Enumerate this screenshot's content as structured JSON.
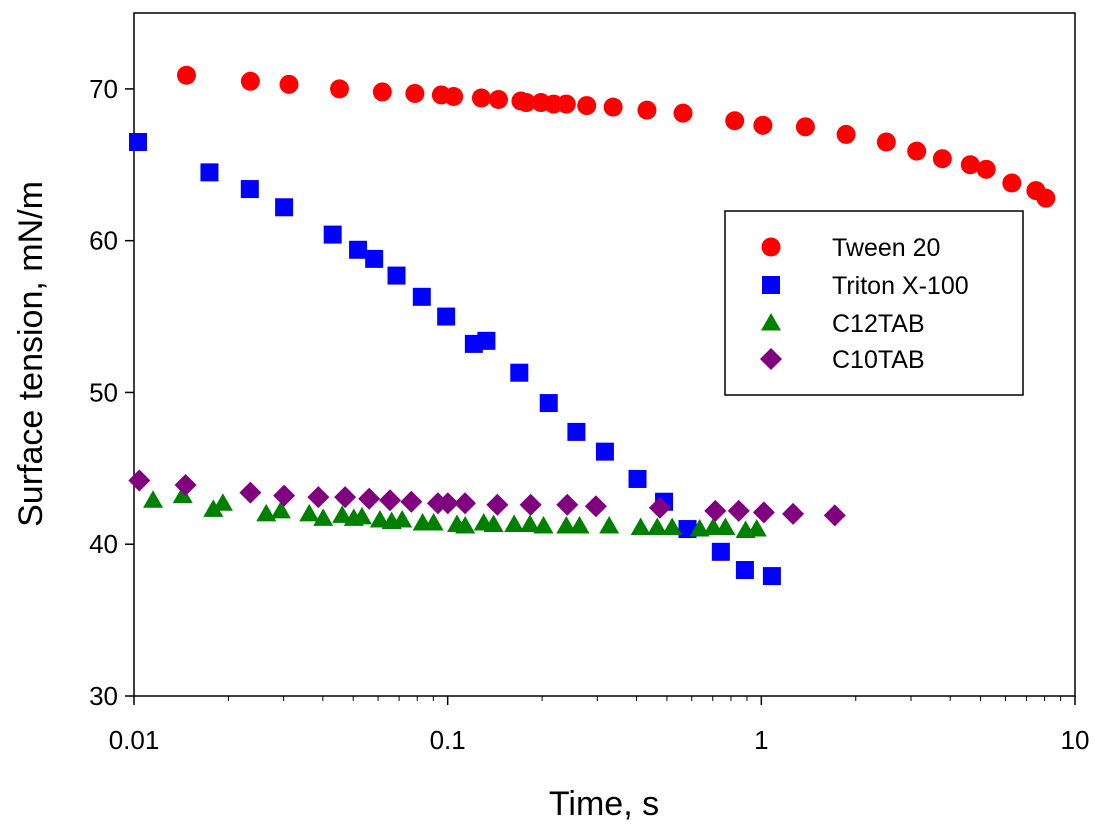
{
  "chart_data": {
    "type": "scatter",
    "title": "",
    "xlabel": "Time, s",
    "ylabel": "Surface tension, mN/m",
    "xscale": "log",
    "xlim": [
      0.01,
      10
    ],
    "ylim": [
      30,
      75
    ],
    "grid": false,
    "legend_position": "right",
    "x_ticks": [
      {
        "value": 0.01,
        "label": "0.01"
      },
      {
        "value": 0.1,
        "label": "0.1"
      },
      {
        "value": 1,
        "label": "1"
      },
      {
        "value": 10,
        "label": "10"
      }
    ],
    "y_ticks": [
      {
        "value": 30,
        "label": "30"
      },
      {
        "value": 40,
        "label": "40"
      },
      {
        "value": 50,
        "label": "50"
      },
      {
        "value": 60,
        "label": "60"
      },
      {
        "value": 70,
        "label": "70"
      }
    ],
    "series": [
      {
        "name": "Tween 20",
        "marker": "circle",
        "color": "#ff0000",
        "points": [
          [
            0.0147,
            70.9
          ],
          [
            0.0235,
            70.5
          ],
          [
            0.0312,
            70.3
          ],
          [
            0.0452,
            70.0
          ],
          [
            0.0619,
            69.8
          ],
          [
            0.0786,
            69.7
          ],
          [
            0.0955,
            69.6
          ],
          [
            0.1045,
            69.5
          ],
          [
            0.1281,
            69.4
          ],
          [
            0.1452,
            69.3
          ],
          [
            0.1712,
            69.2
          ],
          [
            0.1782,
            69.1
          ],
          [
            0.1984,
            69.1
          ],
          [
            0.2177,
            69.0
          ],
          [
            0.2389,
            69.0
          ],
          [
            0.2775,
            68.9
          ],
          [
            0.3369,
            68.8
          ],
          [
            0.4319,
            68.6
          ],
          [
            0.5627,
            68.4
          ],
          [
            0.8225,
            67.9
          ],
          [
            1.0114,
            67.6
          ],
          [
            1.3821,
            67.5
          ],
          [
            1.8631,
            67.0
          ],
          [
            2.5034,
            66.5
          ],
          [
            3.1284,
            65.9
          ],
          [
            3.7761,
            65.4
          ],
          [
            4.6369,
            65.0
          ],
          [
            5.2111,
            64.7
          ],
          [
            6.2899,
            63.8
          ],
          [
            7.5067,
            63.3
          ],
          [
            8.0741,
            62.8
          ]
        ]
      },
      {
        "name": "Triton X-100",
        "marker": "square",
        "color": "#0000ff",
        "points": [
          [
            0.0103,
            66.5
          ],
          [
            0.0174,
            64.5
          ],
          [
            0.0234,
            63.4
          ],
          [
            0.0301,
            62.2
          ],
          [
            0.043,
            60.4
          ],
          [
            0.0518,
            59.4
          ],
          [
            0.0583,
            58.8
          ],
          [
            0.0687,
            57.7
          ],
          [
            0.0827,
            56.3
          ],
          [
            0.0989,
            55.0
          ],
          [
            0.1212,
            53.2
          ],
          [
            0.1329,
            53.4
          ],
          [
            0.1692,
            51.3
          ],
          [
            0.21,
            49.3
          ],
          [
            0.2573,
            47.4
          ],
          [
            0.3172,
            46.1
          ],
          [
            0.403,
            44.3
          ],
          [
            0.4896,
            42.8
          ],
          [
            0.5816,
            41.0
          ],
          [
            0.7429,
            39.5
          ],
          [
            0.8865,
            38.3
          ],
          [
            1.0806,
            37.9
          ]
        ]
      },
      {
        "name": "C12TAB",
        "marker": "triangle",
        "color": "#008000",
        "points": [
          [
            0.0115,
            42.9
          ],
          [
            0.0143,
            43.2
          ],
          [
            0.0179,
            42.3
          ],
          [
            0.0192,
            42.7
          ],
          [
            0.0264,
            42.0
          ],
          [
            0.0294,
            42.2
          ],
          [
            0.0362,
            42.0
          ],
          [
            0.0401,
            41.7
          ],
          [
            0.0461,
            41.9
          ],
          [
            0.0502,
            41.7
          ],
          [
            0.0533,
            41.8
          ],
          [
            0.0608,
            41.6
          ],
          [
            0.0663,
            41.5
          ],
          [
            0.0716,
            41.6
          ],
          [
            0.0832,
            41.4
          ],
          [
            0.0902,
            41.4
          ],
          [
            0.1071,
            41.3
          ],
          [
            0.1137,
            41.2
          ],
          [
            0.1303,
            41.4
          ],
          [
            0.1401,
            41.3
          ],
          [
            0.1629,
            41.3
          ],
          [
            0.1829,
            41.3
          ],
          [
            0.2021,
            41.2
          ],
          [
            0.2389,
            41.2
          ],
          [
            0.2632,
            41.2
          ],
          [
            0.3272,
            41.2
          ],
          [
            0.4124,
            41.1
          ],
          [
            0.4658,
            41.1
          ],
          [
            0.5195,
            41.1
          ],
          [
            0.636,
            41.0
          ],
          [
            0.7028,
            41.1
          ],
          [
            0.7681,
            41.1
          ],
          [
            0.8908,
            40.9
          ],
          [
            0.9669,
            41.0
          ]
        ]
      },
      {
        "name": "C10TAB",
        "marker": "diamond",
        "color": "#800080",
        "points": [
          [
            0.0104,
            44.2
          ],
          [
            0.0146,
            43.9
          ],
          [
            0.0235,
            43.4
          ],
          [
            0.0301,
            43.2
          ],
          [
            0.0387,
            43.1
          ],
          [
            0.0471,
            43.1
          ],
          [
            0.0562,
            43.0
          ],
          [
            0.0655,
            42.9
          ],
          [
            0.0766,
            42.8
          ],
          [
            0.0931,
            42.7
          ],
          [
            0.1001,
            42.7
          ],
          [
            0.1136,
            42.7
          ],
          [
            0.144,
            42.6
          ],
          [
            0.1839,
            42.6
          ],
          [
            0.2406,
            42.6
          ],
          [
            0.2969,
            42.5
          ],
          [
            0.475,
            42.4
          ],
          [
            0.7133,
            42.2
          ],
          [
            0.8474,
            42.2
          ],
          [
            1.0187,
            42.1
          ],
          [
            1.2624,
            42.0
          ],
          [
            1.7147,
            41.9
          ]
        ]
      }
    ]
  }
}
